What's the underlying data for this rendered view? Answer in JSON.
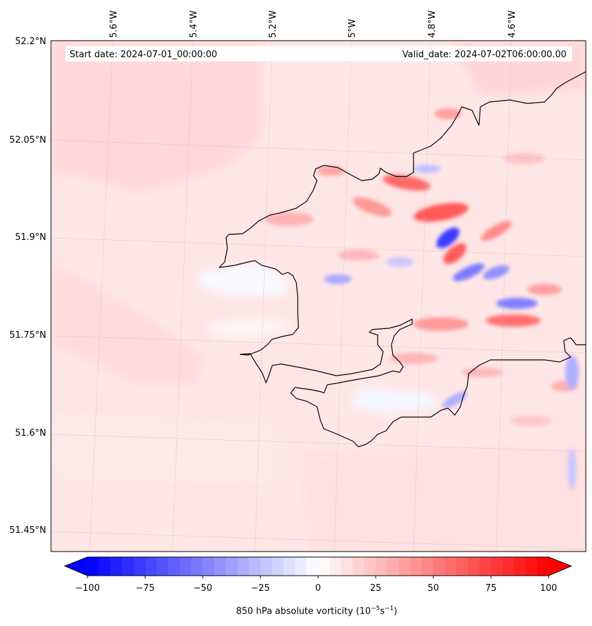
{
  "header": {
    "start_date": "Start date: 2024-07-01_00:00:00",
    "valid_date": "Valid_date: 2024-07-02T06:00:00.00"
  },
  "axes": {
    "lon_labels": [
      "5.6°W",
      "5.4°W",
      "5.2°W",
      "5°W",
      "4.8°W",
      "4.6°W"
    ],
    "lat_labels": [
      "52.2°N",
      "52.05°N",
      "51.9°N",
      "51.75°N",
      "51.6°N",
      "51.45°N"
    ]
  },
  "colorbar": {
    "tick_labels": [
      "−100",
      "−75",
      "−50",
      "−25",
      "0",
      "25",
      "50",
      "75",
      "100"
    ],
    "title_prefix": "850 hPa absolute vorticity (10",
    "title_exp1": "−5",
    "title_mid": "s",
    "title_exp2": "−1",
    "title_suffix": ")",
    "min_color": "#0000ff",
    "mid_color": "#ffffff",
    "max_color": "#ff0000"
  }
}
